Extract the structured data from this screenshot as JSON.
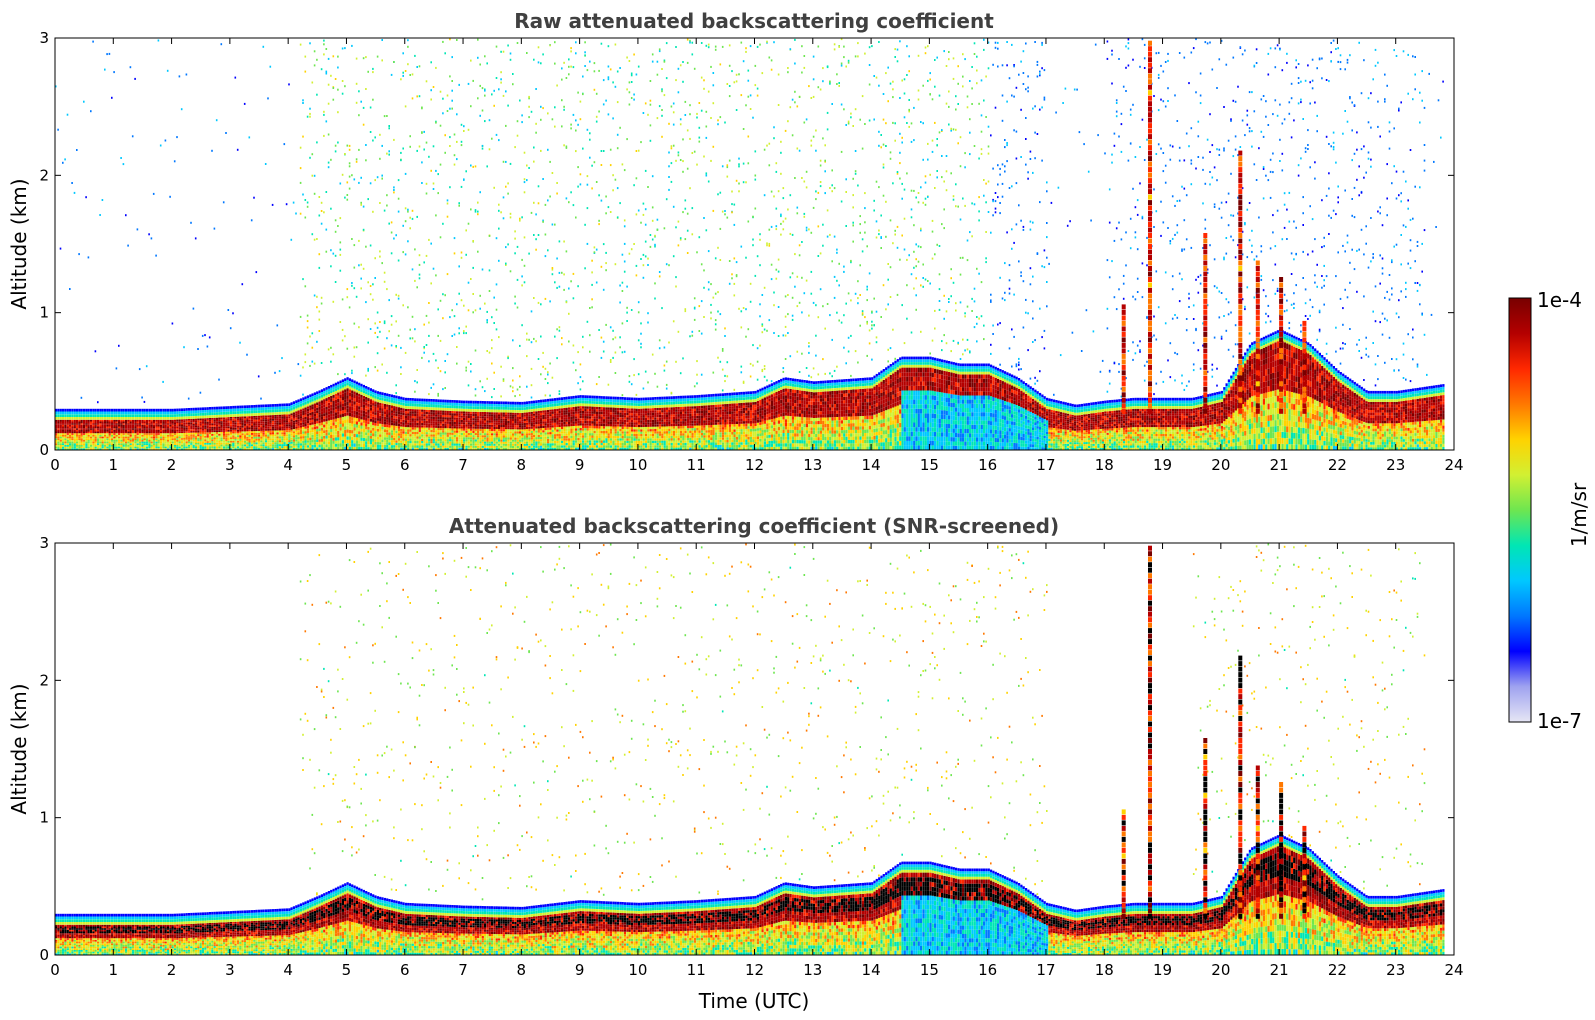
{
  "chart_data": [
    {
      "type": "heatmap",
      "title": "Raw attenuated backscattering coefficient",
      "ylabel": "Altitude (km)",
      "xlabel": "",
      "xlim": [
        0,
        24
      ],
      "ylim": [
        0,
        3
      ],
      "xticks": [
        "0",
        "1",
        "2",
        "3",
        "4",
        "5",
        "6",
        "7",
        "8",
        "9",
        "10",
        "11",
        "12",
        "13",
        "14",
        "15",
        "16",
        "17",
        "18",
        "19",
        "20",
        "21",
        "22",
        "23",
        "24"
      ],
      "yticks": [
        "0",
        "1",
        "2",
        "3"
      ],
      "boundary_layer_top_km": [
        [
          0,
          0.22
        ],
        [
          1,
          0.22
        ],
        [
          2,
          0.22
        ],
        [
          3,
          0.24
        ],
        [
          4,
          0.26
        ],
        [
          4.5,
          0.35
        ],
        [
          5,
          0.45
        ],
        [
          5.5,
          0.35
        ],
        [
          6,
          0.3
        ],
        [
          7,
          0.28
        ],
        [
          8,
          0.27
        ],
        [
          9,
          0.32
        ],
        [
          10,
          0.3
        ],
        [
          11,
          0.32
        ],
        [
          12,
          0.35
        ],
        [
          12.5,
          0.45
        ],
        [
          13,
          0.42
        ],
        [
          14,
          0.45
        ],
        [
          14.5,
          0.6
        ],
        [
          15,
          0.6
        ],
        [
          15.5,
          0.55
        ],
        [
          16,
          0.55
        ],
        [
          16.5,
          0.45
        ],
        [
          17,
          0.3
        ],
        [
          17.5,
          0.25
        ],
        [
          18,
          0.28
        ],
        [
          18.5,
          0.3
        ],
        [
          19,
          0.3
        ],
        [
          19.5,
          0.3
        ],
        [
          20,
          0.35
        ],
        [
          20.5,
          0.7
        ],
        [
          21,
          0.8
        ],
        [
          21.5,
          0.7
        ],
        [
          22,
          0.5
        ],
        [
          22.5,
          0.35
        ],
        [
          23,
          0.35
        ],
        [
          23.8,
          0.4
        ]
      ]
    },
    {
      "type": "heatmap",
      "title": "Attenuated backscattering coefficient (SNR-screened)",
      "ylabel": "Altitude (km)",
      "xlabel": "Time (UTC)",
      "xlim": [
        0,
        24
      ],
      "ylim": [
        0,
        3
      ],
      "xticks": [
        "0",
        "1",
        "2",
        "3",
        "4",
        "5",
        "6",
        "7",
        "8",
        "9",
        "10",
        "11",
        "12",
        "13",
        "14",
        "15",
        "16",
        "17",
        "18",
        "19",
        "20",
        "21",
        "22",
        "23",
        "24"
      ],
      "yticks": [
        "0",
        "1",
        "2",
        "3"
      ]
    }
  ],
  "colorbar": {
    "label": "1/m/sr",
    "max_label": "1e-4",
    "min_label": "1e-7",
    "colors": [
      "#e6e6f5",
      "#9fa3f0",
      "#0000ff",
      "#0077ff",
      "#00c8ff",
      "#00e6b4",
      "#6ee650",
      "#d2f032",
      "#ffd200",
      "#ff7800",
      "#ff2800",
      "#b40000",
      "#780000"
    ]
  }
}
